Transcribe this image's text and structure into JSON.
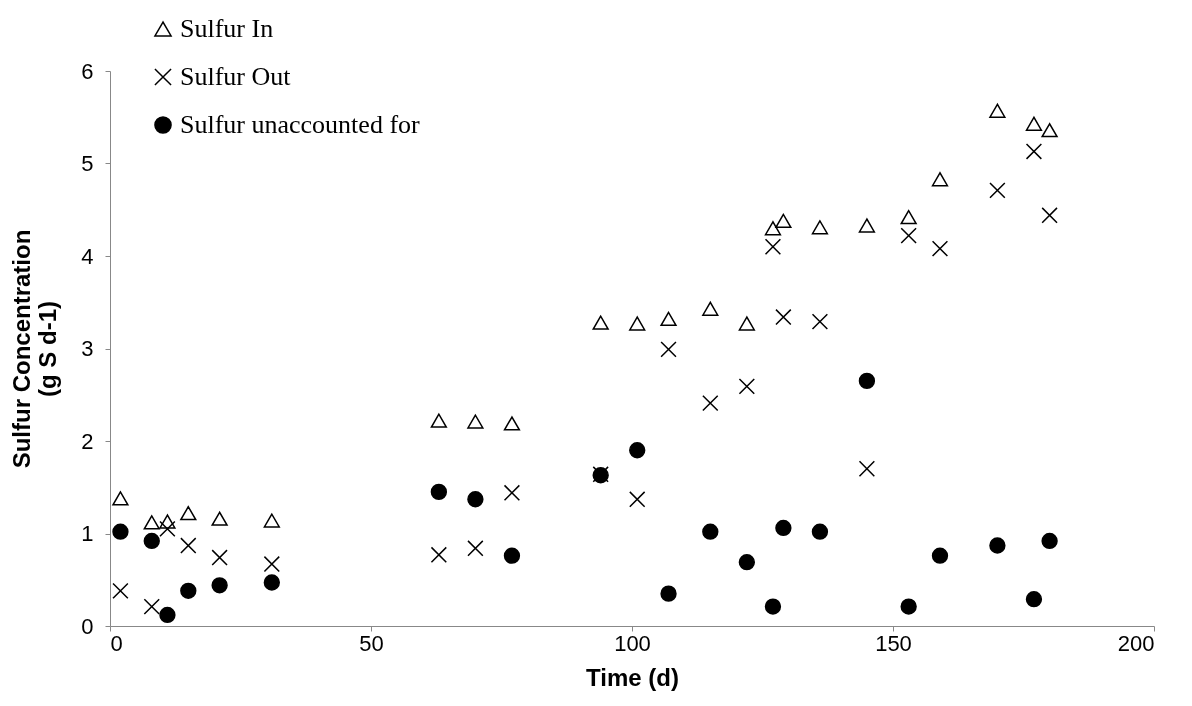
{
  "chart_data": {
    "type": "scatter",
    "xlabel": "Time (d)",
    "ylabel": "Sulfur Concentration\n(g S d-1)",
    "x": [
      2,
      8,
      11,
      15,
      21,
      31,
      63,
      70,
      77,
      94,
      101,
      107,
      115,
      122,
      127,
      129,
      136,
      145,
      153,
      159,
      170,
      177,
      180
    ],
    "series": [
      {
        "name": "Sulfur In",
        "color": "#000000",
        "marker": "triangle",
        "values": [
          1.38,
          1.12,
          1.13,
          1.22,
          1.16,
          1.14,
          2.22,
          2.21,
          2.19,
          3.28,
          3.27,
          3.32,
          3.43,
          3.27,
          4.3,
          4.38,
          4.31,
          4.33,
          4.42,
          4.83,
          5.57,
          5.43,
          5.36
        ]
      },
      {
        "name": "Sulfur Out",
        "color": "#000000",
        "marker": "cross",
        "values": [
          0.38,
          0.21,
          1.05,
          0.87,
          0.74,
          0.67,
          0.77,
          0.84,
          1.44,
          1.64,
          1.37,
          2.99,
          2.41,
          2.59,
          4.1,
          3.34,
          3.29,
          1.7,
          4.22,
          4.08,
          4.71,
          5.13,
          4.44
        ]
      },
      {
        "name": "Sulfur unaccounted for",
        "color": "#000000",
        "marker": "circle",
        "values": [
          1.02,
          0.92,
          0.12,
          0.38,
          0.44,
          0.47,
          1.45,
          1.37,
          0.76,
          1.63,
          1.9,
          0.35,
          1.02,
          0.69,
          0.21,
          1.06,
          1.02,
          2.65,
          0.21,
          0.76,
          0.87,
          0.29,
          0.92
        ]
      }
    ],
    "xlim": [
      0,
      200
    ],
    "xticks": [
      0,
      50,
      100,
      150,
      200
    ],
    "ylim": [
      0,
      6
    ],
    "yticks": [
      0,
      1,
      2,
      3,
      4,
      5,
      6
    ],
    "grid": false,
    "legend": "top left"
  }
}
